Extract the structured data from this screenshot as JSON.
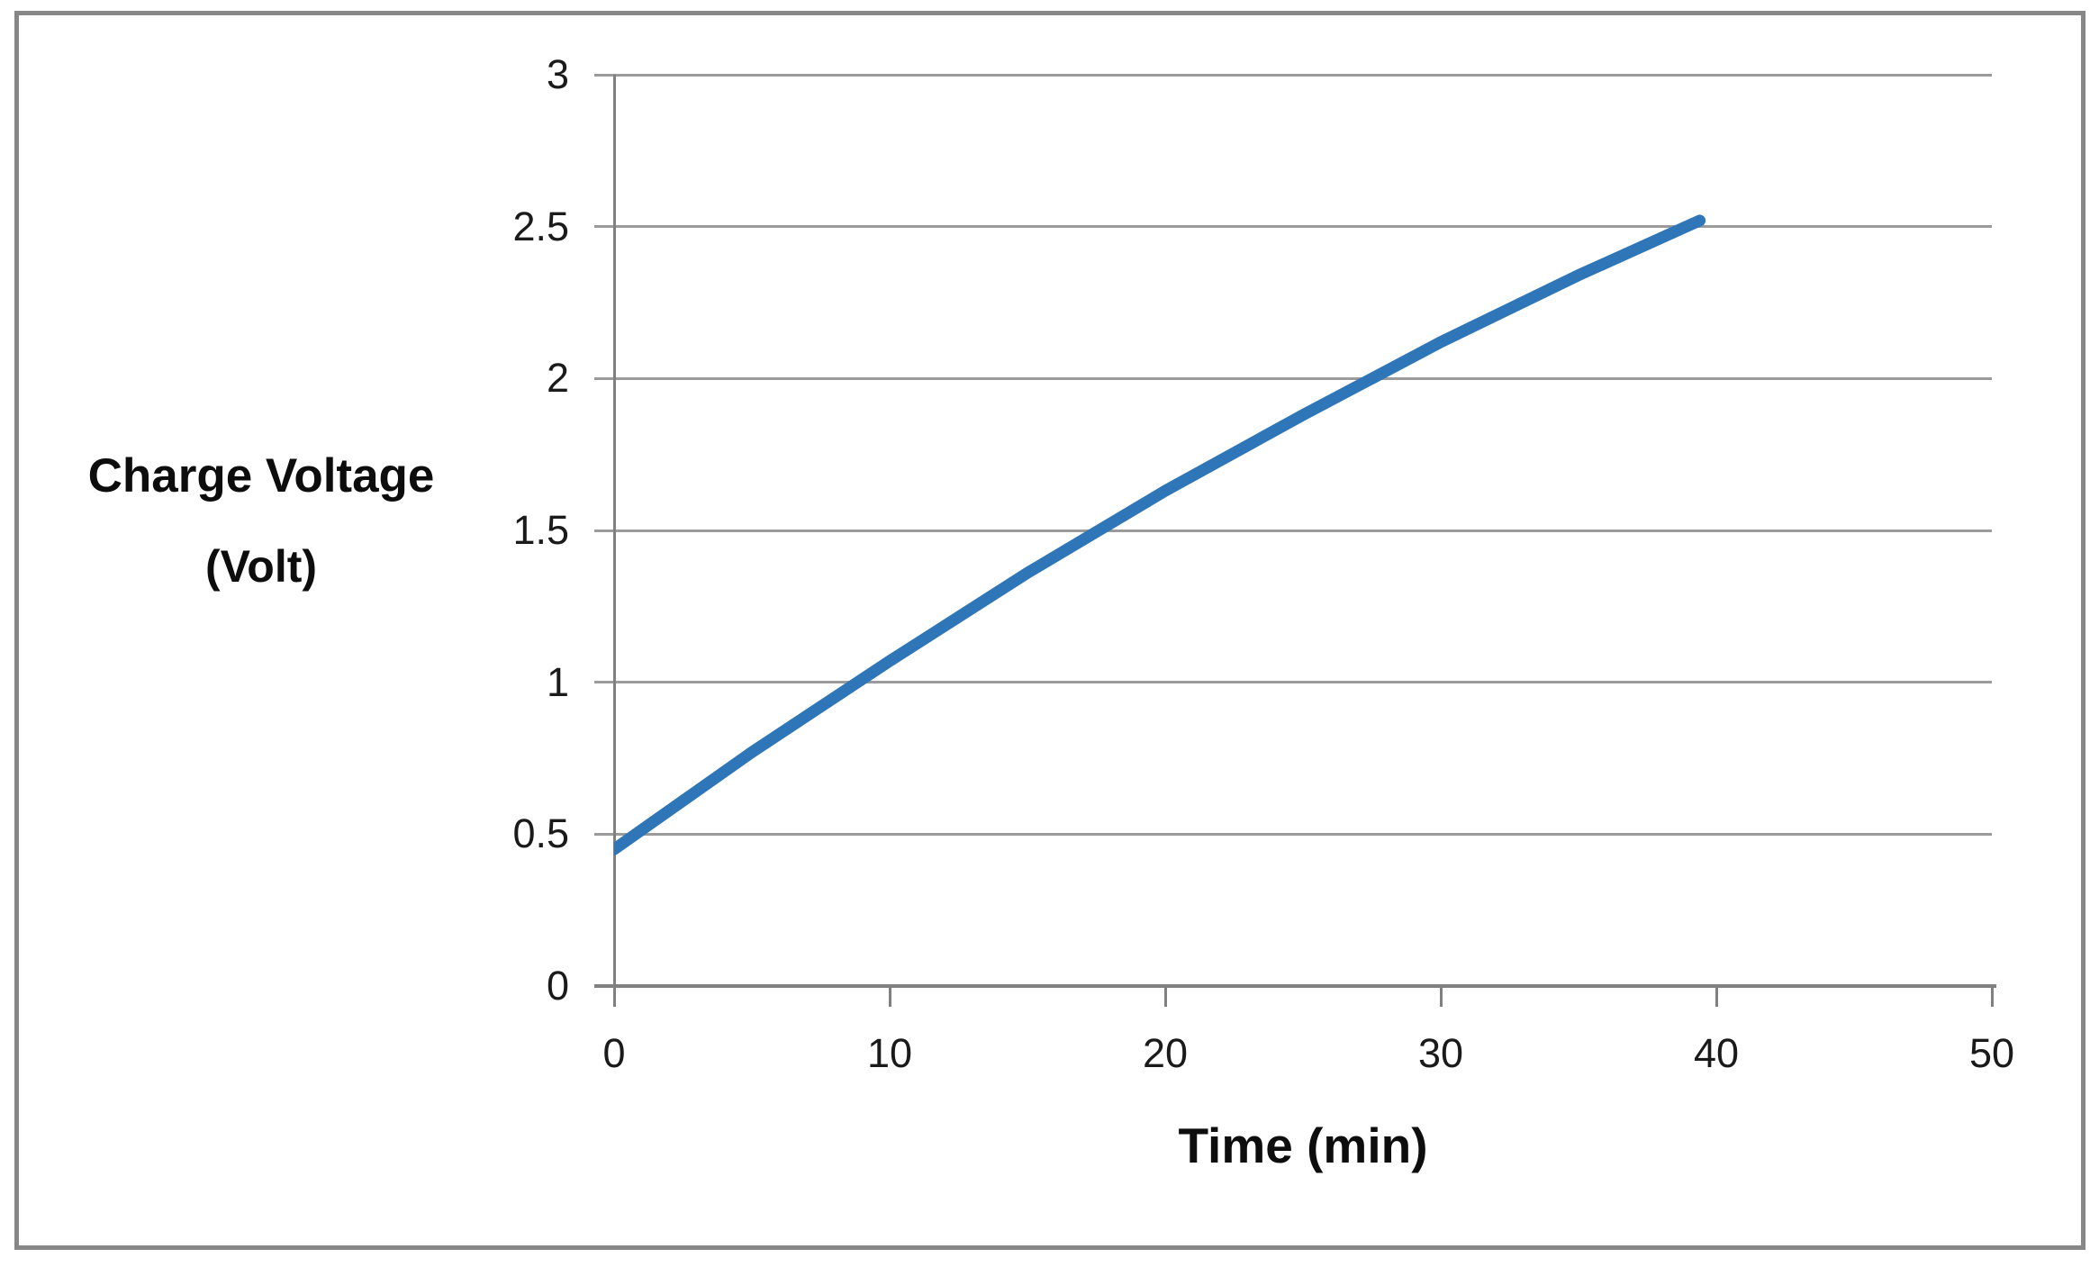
{
  "chart_data": {
    "type": "line",
    "title": "",
    "xlabel": "Time (min)",
    "ylabel_line1": "Charge Voltage",
    "ylabel_line2": "(Volt)",
    "xlim": [
      0,
      50
    ],
    "ylim": [
      0,
      3
    ],
    "x_ticks": [
      0,
      10,
      20,
      30,
      40,
      50
    ],
    "x_tick_labels": [
      "0",
      "10",
      "20",
      "30",
      "40",
      "50"
    ],
    "y_ticks": [
      0,
      0.5,
      1,
      1.5,
      2,
      2.5,
      3
    ],
    "y_tick_labels": [
      "0",
      "0.5",
      "1",
      "1.5",
      "2",
      "2.5",
      "3"
    ],
    "grid": "horizontal",
    "legend": "none",
    "series": [
      {
        "name": "Charge Voltage",
        "color": "#2e76b8",
        "points": [
          [
            0,
            0.45
          ],
          [
            5,
            0.77
          ],
          [
            10,
            1.07
          ],
          [
            15,
            1.36
          ],
          [
            20,
            1.63
          ],
          [
            25,
            1.88
          ],
          [
            30,
            2.12
          ],
          [
            35,
            2.34
          ],
          [
            39.4,
            2.52
          ]
        ]
      }
    ]
  },
  "colors": {
    "background": "#ffffff",
    "border": "#878787",
    "gridline": "#9b9b9b",
    "axis": "#808080",
    "text": "#1a1a1a",
    "line": "#2e76b8"
  }
}
